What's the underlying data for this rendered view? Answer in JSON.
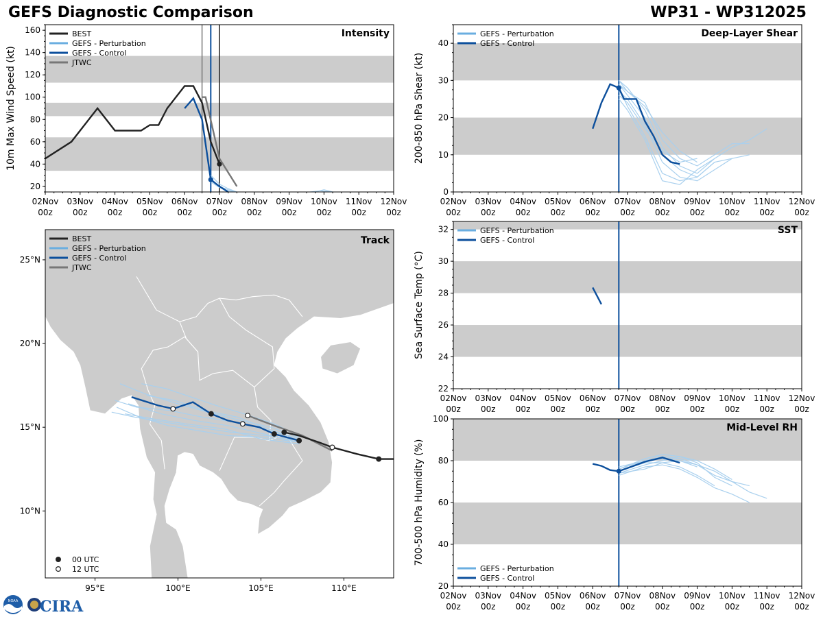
{
  "header": {
    "left_title": "GEFS Diagnostic Comparison",
    "right_title": "WP31 - WP312025"
  },
  "logos": {
    "noaa": "NOAA",
    "cira": "CIRA"
  },
  "colors": {
    "best": "#222222",
    "pert": "#6aaee0",
    "pert_thin": "#a9d0ee",
    "control": "#0c4f9c",
    "jtwc": "#777777",
    "band": "#cccccc"
  },
  "time_axis": {
    "ticks": [
      "02Nov 00z",
      "03Nov 00z",
      "04Nov 00z",
      "05Nov 00z",
      "06Nov 00z",
      "07Nov 00z",
      "08Nov 00z",
      "09Nov 00z",
      "10Nov 00z",
      "11Nov 00z",
      "12Nov 00z"
    ],
    "range_days": [
      0,
      10
    ]
  },
  "chart_data": [
    {
      "id": "intensity",
      "type": "line",
      "title": "Intensity",
      "ylabel": "10m Max Wind Speed (kt)",
      "xlabel": "",
      "ylim": [
        15,
        165
      ],
      "yticks": [
        20,
        40,
        60,
        80,
        100,
        120,
        140,
        160
      ],
      "bands": [
        [
          34,
          64
        ],
        [
          83,
          95
        ],
        [
          113,
          137
        ]
      ],
      "vlines": [
        {
          "x": 4.5,
          "series": "JTWC"
        },
        {
          "x": 4.75,
          "series": "GEFS - Control"
        },
        {
          "x": 5.0,
          "series": "BEST"
        }
      ],
      "legend": [
        "BEST",
        "GEFS - Perturbation",
        "GEFS - Control",
        "JTWC"
      ],
      "series": [
        {
          "name": "BEST",
          "x": [
            0,
            0.75,
            1.5,
            2,
            2.75,
            3,
            3.25,
            3.5,
            4,
            4.25,
            4.5,
            4.75,
            5
          ],
          "y": [
            45,
            60,
            90,
            70,
            70,
            75,
            75,
            90,
            110,
            110,
            95,
            60,
            40
          ],
          "marker_x": 5,
          "marker_y": 40
        },
        {
          "name": "GEFS - Control",
          "x": [
            4,
            4.25,
            4.5,
            4.75,
            5,
            5.25
          ],
          "y": [
            90,
            99,
            80,
            26,
            20,
            15
          ],
          "marker_x": 4.75,
          "marker_y": 26
        },
        {
          "name": "JTWC",
          "x": [
            4.5,
            4.6,
            5,
            5.5
          ],
          "y": [
            100,
            100,
            45,
            20
          ]
        },
        {
          "name": "GEFS - Perturbation",
          "members": [
            {
              "x": [
                4.75,
                5,
                5.25,
                5.5
              ],
              "y": [
                30,
                22,
                18,
                15
              ]
            },
            {
              "x": [
                4.75,
                5,
                5.25,
                5.5
              ],
              "y": [
                27,
                20,
                17,
                15
              ]
            },
            {
              "x": [
                4.75,
                5,
                5.25,
                5.5
              ],
              "y": [
                24,
                19,
                16,
                15
              ]
            },
            {
              "x": [
                7.75,
                8,
                8.25
              ],
              "y": [
                15,
                17,
                15
              ]
            },
            {
              "x": [
                7.6,
                7.9,
                8.2
              ],
              "y": [
                15,
                16,
                15
              ]
            }
          ]
        }
      ]
    },
    {
      "id": "shear",
      "type": "line",
      "title": "Deep-Layer Shear",
      "ylabel": "200-850 hPa Shear (kt)",
      "xlabel": "",
      "ylim": [
        0,
        45
      ],
      "yticks": [
        0,
        10,
        20,
        30,
        40
      ],
      "bands": [
        [
          10,
          20
        ],
        [
          30,
          40
        ]
      ],
      "vlines": [
        {
          "x": 4.75,
          "series": "GEFS - Control"
        }
      ],
      "legend": [
        "GEFS - Perturbation",
        "GEFS - Control"
      ],
      "series": [
        {
          "name": "GEFS - Control",
          "x": [
            4,
            4.25,
            4.5,
            4.75,
            4.9,
            5.25,
            5.5,
            5.75,
            6,
            6.25,
            6.5
          ],
          "y": [
            17,
            24,
            29,
            28,
            25,
            25,
            19,
            15,
            10,
            8,
            7.5
          ],
          "marker_x": 4.75,
          "marker_y": 28
        },
        {
          "name": "GEFS - Perturbation",
          "members": [
            {
              "x": [
                4.75,
                5,
                5.5,
                6,
                6.5,
                7,
                7.5,
                8,
                8.5
              ],
              "y": [
                30,
                27,
                24,
                14,
                9,
                7,
                10,
                13,
                13
              ]
            },
            {
              "x": [
                4.75,
                5,
                5.5,
                6,
                6.5,
                7,
                7.5,
                8
              ],
              "y": [
                29,
                26,
                20,
                10,
                6,
                4,
                8,
                9
              ]
            },
            {
              "x": [
                4.75,
                5,
                5.5,
                6,
                6.5,
                7,
                7.5,
                8,
                8.5
              ],
              "y": [
                27,
                25,
                18,
                8,
                4,
                3,
                6,
                9,
                10
              ]
            },
            {
              "x": [
                4.75,
                5,
                5.5,
                6,
                6.5,
                7,
                7.5
              ],
              "y": [
                28,
                23,
                15,
                5,
                3,
                4,
                8
              ]
            },
            {
              "x": [
                4.75,
                5,
                5.5,
                6,
                6.5,
                7
              ],
              "y": [
                26,
                24,
                17,
                11,
                8,
                9
              ]
            },
            {
              "x": [
                4.75,
                5,
                5.5,
                6,
                6.5,
                7,
                7.5,
                8,
                8.5,
                9
              ],
              "y": [
                30,
                28,
                22,
                12,
                7,
                5,
                9,
                12,
                14,
                17
              ]
            },
            {
              "x": [
                4.75,
                5,
                5.5,
                6,
                6.5,
                7,
                7.5
              ],
              "y": [
                25,
                22,
                14,
                3,
                2,
                6,
                9
              ]
            },
            {
              "x": [
                4.75,
                5,
                5.5,
                6,
                6.5,
                7
              ],
              "y": [
                29,
                27,
                23,
                16,
                11,
                8
              ]
            }
          ]
        }
      ]
    },
    {
      "id": "sst",
      "type": "line",
      "title": "SST",
      "ylabel": "Sea Surface Temp (°C)",
      "xlabel": "",
      "ylim": [
        22,
        32.5
      ],
      "yticks": [
        22,
        24,
        26,
        28,
        30,
        32
      ],
      "bands": [
        [
          24,
          26
        ],
        [
          28,
          30
        ],
        [
          32,
          32.5
        ]
      ],
      "vlines": [
        {
          "x": 4.75,
          "series": "GEFS - Control"
        }
      ],
      "legend": [
        "GEFS - Perturbation",
        "GEFS - Control"
      ],
      "series": [
        {
          "name": "GEFS - Control",
          "x": [
            4,
            4.25
          ],
          "y": [
            28.35,
            27.3
          ]
        }
      ]
    },
    {
      "id": "rh",
      "type": "line",
      "title": "Mid-Level RH",
      "ylabel": "700-500 hPa Humidity (%)",
      "xlabel": "",
      "ylim": [
        20,
        100
      ],
      "yticks": [
        20,
        40,
        60,
        80,
        100
      ],
      "bands": [
        [
          40,
          60
        ],
        [
          80,
          100
        ]
      ],
      "vlines": [
        {
          "x": 4.75,
          "series": "GEFS - Control"
        }
      ],
      "legend": [
        "GEFS - Perturbation",
        "GEFS - Control"
      ],
      "legend_position": "bottom-left",
      "series": [
        {
          "name": "GEFS - Control",
          "x": [
            4,
            4.25,
            4.5,
            4.75,
            5,
            5.5,
            6,
            6.5
          ],
          "y": [
            78.5,
            77.5,
            75.5,
            75,
            76.5,
            79.5,
            81.5,
            79
          ],
          "marker_x": 4.75,
          "marker_y": 75
        },
        {
          "name": "GEFS - Perturbation",
          "members": [
            {
              "x": [
                4.75,
                5.5,
                6,
                6.5,
                7,
                7.5,
                8,
                8.5
              ],
              "y": [
                76,
                80,
                82,
                81,
                78,
                73,
                70,
                68
              ]
            },
            {
              "x": [
                4.75,
                5.5,
                6,
                6.5,
                7,
                7.5,
                8
              ],
              "y": [
                74,
                78,
                80,
                82,
                80,
                76,
                71
              ]
            },
            {
              "x": [
                4.75,
                5.5,
                6,
                6.5,
                7,
                7.5
              ],
              "y": [
                75,
                79,
                79,
                77,
                73,
                68
              ]
            },
            {
              "x": [
                4.75,
                5.5,
                6,
                6.5,
                7,
                7.5,
                8,
                8.5,
                9
              ],
              "y": [
                77,
                80,
                81,
                80,
                78,
                75,
                70,
                65,
                62
              ]
            },
            {
              "x": [
                4.75,
                5.5,
                6,
                6.5,
                7,
                7.5,
                8,
                8.5
              ],
              "y": [
                73,
                77,
                78,
                76,
                72,
                67,
                64,
                60
              ]
            },
            {
              "x": [
                4.75,
                5.5,
                6,
                6.5,
                7,
                7.5,
                8
              ],
              "y": [
                76,
                81,
                83,
                82,
                79,
                72,
                68
              ]
            },
            {
              "x": [
                4.75,
                5.5,
                6,
                6.5,
                7
              ],
              "y": [
                74,
                76,
                79,
                80,
                77
              ]
            }
          ]
        }
      ]
    },
    {
      "id": "track",
      "type": "line",
      "title": "Track",
      "xlabel": "",
      "ylabel": "",
      "xlim": [
        92,
        113
      ],
      "ylim": [
        6,
        26.8
      ],
      "xticks": [
        95,
        100,
        105,
        110
      ],
      "xtick_labels": [
        "95°E",
        "100°E",
        "105°E",
        "110°E"
      ],
      "yticks": [
        10,
        15,
        20,
        25
      ],
      "ytick_labels": [
        "10°N",
        "15°N",
        "20°N",
        "25°N"
      ],
      "legend": [
        "BEST",
        "GEFS - Perturbation",
        "GEFS - Control",
        "JTWC"
      ],
      "time_legend": [
        "00 UTC",
        "12 UTC"
      ],
      "series": [
        {
          "name": "BEST",
          "lon": [
            113,
            112.1,
            110.8,
            109.3,
            108.5,
            107.3,
            106.4
          ],
          "lat": [
            13.1,
            13.1,
            13.4,
            13.8,
            14.1,
            14.5,
            14.7
          ],
          "markers": [
            {
              "lon": 112.1,
              "lat": 13.1,
              "type": "00 UTC"
            },
            {
              "lon": 109.3,
              "lat": 13.8,
              "type": "12 UTC"
            },
            {
              "lon": 106.4,
              "lat": 14.7,
              "type": "00 UTC"
            }
          ]
        },
        {
          "name": "JTWC",
          "lon": [
            109.3,
            107.5,
            105.8,
            104.2
          ],
          "lat": [
            13.6,
            14.5,
            15.1,
            15.7
          ],
          "markers": [
            {
              "lon": 104.2,
              "lat": 15.7,
              "type": "12 UTC"
            }
          ]
        },
        {
          "name": "GEFS - Control",
          "lon": [
            107.3,
            105.8,
            104.9,
            103.9,
            103,
            102,
            100.9,
            99.7,
            98.8,
            97.2
          ],
          "lat": [
            14.2,
            14.6,
            15,
            15.2,
            15.4,
            15.8,
            16.5,
            16.1,
            16.3,
            16.8
          ],
          "markers": [
            {
              "lon": 107.3,
              "lat": 14.2,
              "type": "00 UTC"
            },
            {
              "lon": 105.8,
              "lat": 14.6,
              "type": "00 UTC"
            },
            {
              "lon": 103.9,
              "lat": 15.2,
              "type": "12 UTC"
            },
            {
              "lon": 102,
              "lat": 15.8,
              "type": "00 UTC"
            },
            {
              "lon": 99.7,
              "lat": 16.1,
              "type": "12 UTC"
            }
          ]
        },
        {
          "name": "GEFS - Perturbation",
          "members": [
            {
              "lon": [
                107.3,
                105.5,
                103.5,
                101.5,
                99.5,
                97.5,
                96.2
              ],
              "lat": [
                14.3,
                14.8,
                15.3,
                15.6,
                16,
                16.2,
                16.6
              ]
            },
            {
              "lon": [
                107.3,
                105.2,
                103,
                101,
                99,
                97
              ],
              "lat": [
                14.1,
                14.6,
                15.1,
                15.4,
                15.8,
                16.4
              ]
            },
            {
              "lon": [
                107.3,
                105.6,
                103.8,
                101.8,
                100,
                98,
                96.5
              ],
              "lat": [
                14.4,
                15,
                15.4,
                15.9,
                16.4,
                17,
                17.6
              ]
            },
            {
              "lon": [
                107.3,
                105,
                102.8,
                100.5,
                98.5,
                96.8
              ],
              "lat": [
                14,
                14.3,
                14.9,
                15.2,
                15.5,
                15.8
              ]
            },
            {
              "lon": [
                107.3,
                105.8,
                104,
                102.3,
                100.8,
                99.3,
                97.8
              ],
              "lat": [
                14.5,
                15.2,
                15.8,
                16.3,
                16.8,
                17.3,
                17.6
              ]
            },
            {
              "lon": [
                107.3,
                105.3,
                103.2,
                101.2,
                99.2,
                97.4,
                96
              ],
              "lat": [
                14.2,
                14.5,
                14.7,
                15,
                15.3,
                15.6,
                15.9
              ]
            },
            {
              "lon": [
                107.3,
                105.4,
                103.6,
                101.6,
                99.8,
                98.1
              ],
              "lat": [
                14.3,
                14.9,
                15.6,
                16,
                16.6,
                16.9
              ]
            },
            {
              "lon": [
                107.3,
                105.1,
                103,
                101.2,
                99.4,
                97.7,
                96.3
              ],
              "lat": [
                14.1,
                14.4,
                14.5,
                14.8,
                15.1,
                15.6,
                16.2
              ]
            }
          ]
        }
      ]
    }
  ]
}
